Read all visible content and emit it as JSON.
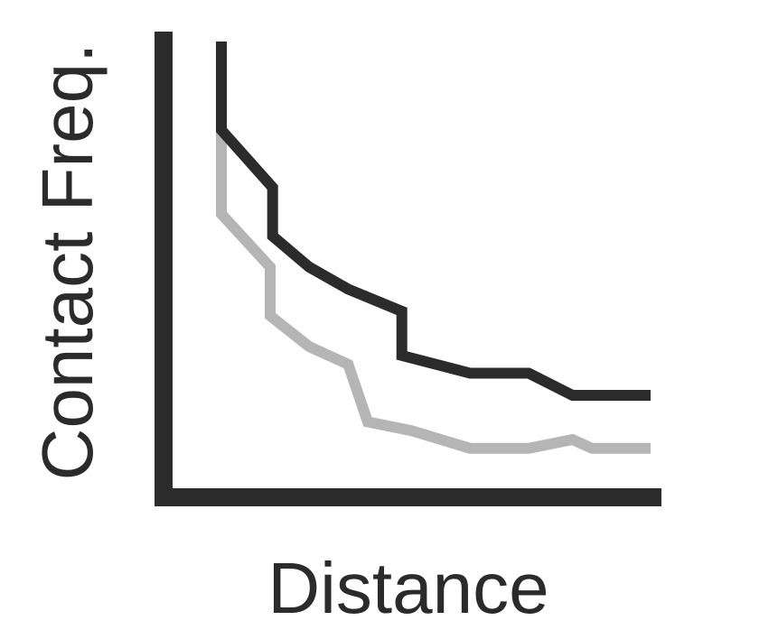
{
  "chart_data": {
    "type": "line",
    "title": "",
    "xlabel": "Distance",
    "ylabel": "Contact Freq.",
    "xlim": [
      0,
      100
    ],
    "ylim": [
      0,
      100
    ],
    "grid": false,
    "legend": "none",
    "series": [
      {
        "color": "#2b2b2b",
        "x": [
          12,
          12,
          22.5,
          22.5,
          30,
          38,
          49,
          49,
          63,
          75,
          84,
          100
        ],
        "y": [
          100,
          80,
          67,
          56,
          49,
          44,
          39,
          29,
          25,
          25,
          20,
          20
        ]
      },
      {
        "color": "#b5b5b5",
        "x": [
          12,
          12,
          22,
          22,
          30,
          38,
          42,
          51,
          63,
          75,
          84,
          88,
          100
        ],
        "y": [
          80,
          61,
          49,
          38,
          31,
          27,
          14,
          12,
          8,
          8,
          10,
          8,
          8
        ]
      }
    ]
  }
}
